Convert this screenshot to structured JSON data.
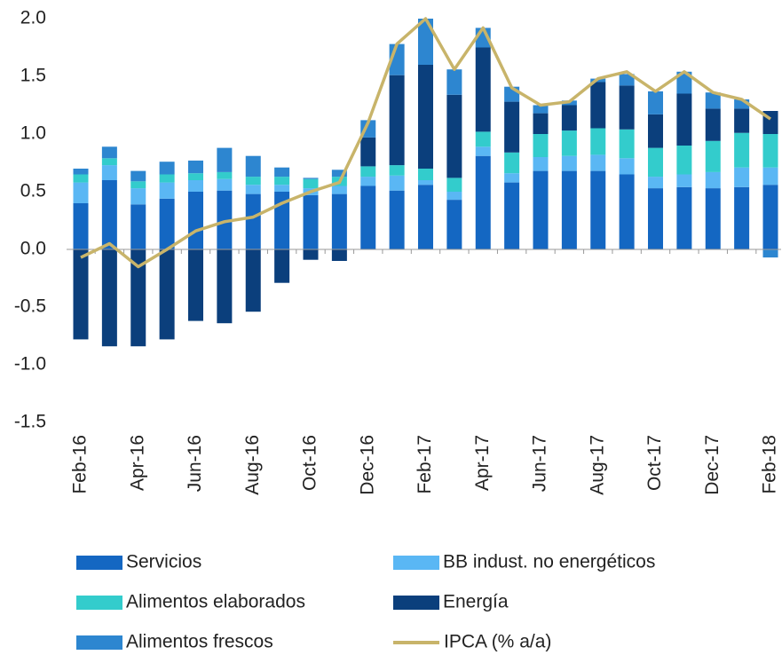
{
  "chart_data": {
    "type": "stacked-bar-line",
    "categories": [
      "Feb-16",
      null,
      "Apr-16",
      null,
      "Jun-16",
      null,
      "Aug-16",
      null,
      "Oct-16",
      null,
      "Dec-16",
      null,
      "Feb-17",
      null,
      "Apr-17",
      null,
      "Jun-17",
      null,
      "Aug-17",
      null,
      "Oct-17",
      null,
      "Dec-17",
      null,
      "Feb-18"
    ],
    "series": [
      {
        "name": "Servicios",
        "color": "#1467c2",
        "values": [
          0.4,
          0.6,
          0.39,
          0.44,
          0.5,
          0.51,
          0.48,
          0.5,
          0.47,
          0.48,
          0.55,
          0.51,
          0.56,
          0.43,
          0.81,
          0.58,
          0.68,
          0.68,
          0.68,
          0.65,
          0.53,
          0.54,
          0.53,
          0.54,
          0.56
        ]
      },
      {
        "name": "BB indust. no energéticos",
        "color": "#5ab7f4",
        "values": [
          0.18,
          0.13,
          0.14,
          0.14,
          0.1,
          0.1,
          0.08,
          0.06,
          0.06,
          0.07,
          0.08,
          0.13,
          0.04,
          0.07,
          0.08,
          0.08,
          0.12,
          0.13,
          0.14,
          0.14,
          0.1,
          0.11,
          0.14,
          0.17,
          0.15
        ]
      },
      {
        "name": "Alimentos elaborados",
        "color": "#33cccc",
        "values": [
          0.07,
          0.06,
          0.06,
          0.07,
          0.06,
          0.06,
          0.07,
          0.07,
          0.08,
          0.08,
          0.09,
          0.09,
          0.1,
          0.12,
          0.13,
          0.18,
          0.2,
          0.22,
          0.23,
          0.25,
          0.25,
          0.25,
          0.27,
          0.3,
          0.29
        ]
      },
      {
        "name": "Energía",
        "color": "#0b3f7c",
        "values": [
          -0.78,
          -0.84,
          -0.84,
          -0.78,
          -0.62,
          -0.64,
          -0.54,
          -0.29,
          -0.09,
          -0.1,
          0.25,
          0.78,
          0.9,
          0.72,
          0.73,
          0.44,
          0.18,
          0.22,
          0.4,
          0.38,
          0.29,
          0.45,
          0.28,
          0.21,
          0.2
        ]
      },
      {
        "name": "Alimentos frescos",
        "color": "#2d86d0",
        "values": [
          0.05,
          0.1,
          0.09,
          0.11,
          0.11,
          0.21,
          0.18,
          0.08,
          0.01,
          0.06,
          0.15,
          0.27,
          0.4,
          0.22,
          0.17,
          0.13,
          0.07,
          0.04,
          0.03,
          0.1,
          0.2,
          0.19,
          0.14,
          0.08,
          -0.07
        ]
      }
    ],
    "line": {
      "name": "IPCA (% a/a)",
      "color": "#c8b46a",
      "values": [
        -0.07,
        0.05,
        -0.15,
        0.0,
        0.16,
        0.24,
        0.28,
        0.4,
        0.5,
        0.58,
        1.1,
        1.78,
        2.0,
        1.56,
        1.92,
        1.4,
        1.25,
        1.28,
        1.48,
        1.54,
        1.37,
        1.54,
        1.36,
        1.3,
        1.13
      ]
    },
    "ylim": [
      -1.5,
      2.0
    ],
    "yticks": [
      {
        "value": -1.5,
        "label": "-1.5"
      },
      {
        "value": -1.0,
        "label": "-1.0"
      },
      {
        "value": -0.5,
        "label": "-0.5"
      },
      {
        "value": 0,
        "label": "0.0"
      },
      {
        "value": 0.5,
        "label": "0.5"
      },
      {
        "value": 1.0,
        "label": "1.0"
      },
      {
        "value": 1.5,
        "label": "1.5"
      },
      {
        "value": 2.0,
        "label": "2.0"
      }
    ],
    "grid": false
  }
}
